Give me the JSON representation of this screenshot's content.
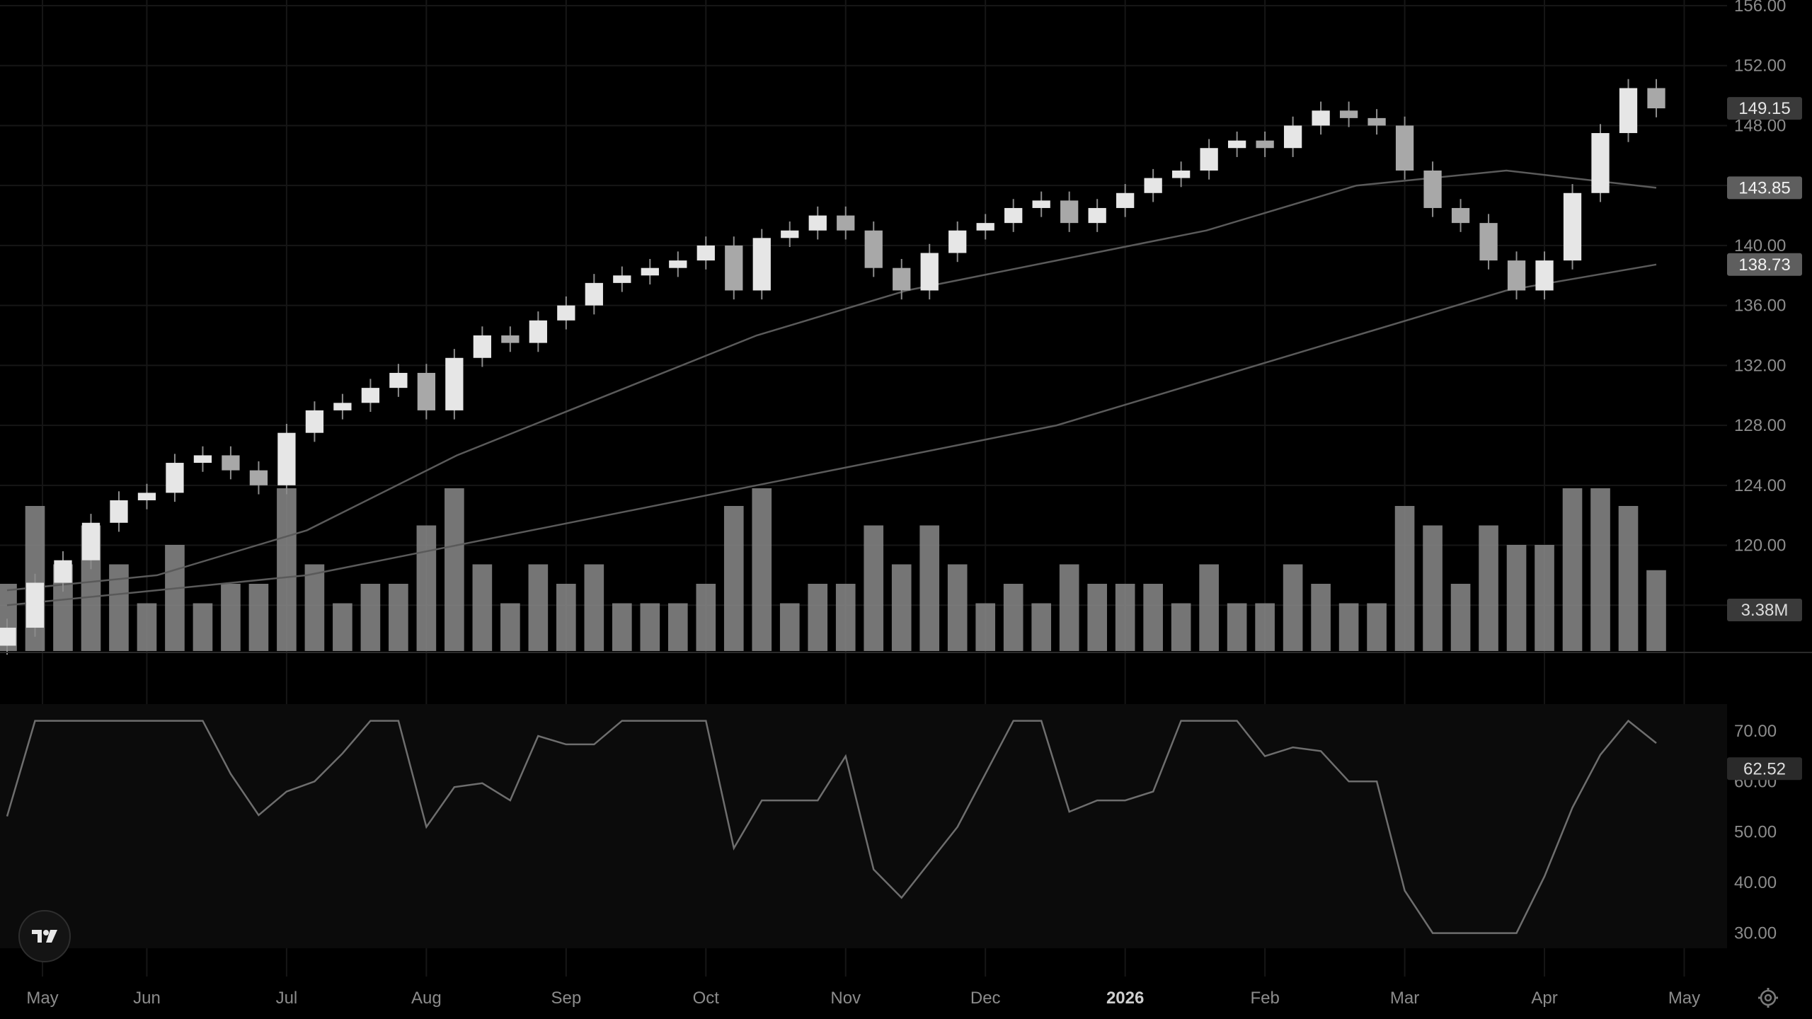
{
  "chart_data": [
    {
      "type": "candlestick",
      "title": "",
      "x_labels": [
        "May",
        "Jun",
        "Jul",
        "Aug",
        "Sep",
        "Oct",
        "Nov",
        "Dec",
        "2026",
        "Feb",
        "Mar",
        "Apr",
        "May"
      ],
      "price_ylim": [
        112,
        156
      ],
      "price_ticks": [
        "156.00",
        "152.00",
        "148.00",
        "144.00",
        "140.00",
        "136.00",
        "132.00",
        "128.00",
        "124.00",
        "120.00",
        "116.00"
      ],
      "last_price_label": "149.15",
      "ma_fast_label": "143.85",
      "ma_slow_label": "138.73",
      "volume_label": "3.38M",
      "close_series_monthly_approx": [
        {
          "month": "May",
          "close": [
            114.5,
            117.5,
            119.0,
            121.5,
            123.0
          ]
        },
        {
          "month": "Jun",
          "close": [
            123.5,
            125.5,
            126.0,
            125.0,
            124.0
          ]
        },
        {
          "month": "Jul",
          "close": [
            127.5,
            129.0,
            129.5,
            130.5,
            131.5
          ]
        },
        {
          "month": "Aug",
          "close": [
            129.0,
            132.5,
            134.0,
            133.5,
            135.0
          ]
        },
        {
          "month": "Sep",
          "close": [
            136.0,
            137.5,
            138.0,
            138.5,
            139.0
          ]
        },
        {
          "month": "Oct",
          "close": [
            140.0,
            137.0,
            140.5,
            141.0,
            142.0
          ]
        },
        {
          "month": "Nov",
          "close": [
            141.0,
            138.5,
            137.0,
            139.5,
            141.0
          ]
        },
        {
          "month": "Dec",
          "close": [
            141.5,
            142.5,
            143.0,
            141.5,
            142.5
          ]
        },
        {
          "month": "2026",
          "close": [
            143.5,
            144.5,
            145.0,
            146.5,
            147.0
          ]
        },
        {
          "month": "Feb",
          "close": [
            146.5,
            148.0,
            149.0,
            148.5,
            148.0
          ]
        },
        {
          "month": "Mar",
          "close": [
            145.0,
            142.5,
            141.5,
            139.0,
            137.0
          ]
        },
        {
          "month": "Apr",
          "close": [
            139.0,
            143.5,
            147.5,
            150.5,
            149.15
          ]
        }
      ],
      "ma_fast_approx": [
        117,
        118,
        121,
        126,
        130,
        134,
        137,
        139,
        141,
        144,
        145,
        143.85
      ],
      "ma_slow_approx": [
        116,
        117,
        118,
        120,
        122,
        124,
        126,
        128,
        131,
        134,
        137,
        138.73
      ]
    },
    {
      "type": "line",
      "title": "",
      "ylim": [
        27,
        76
      ],
      "ticks": [
        "70.00",
        "60.00",
        "50.00",
        "40.00",
        "30.00"
      ],
      "overbought": 70,
      "oversold": 30,
      "last_value_label": "62.52"
    }
  ],
  "colors": {
    "background": "#000000",
    "grid": "#161616",
    "candle_up": "#e6e6e6",
    "candle_down": "#a8a8a8",
    "wick": "#8c8c8c",
    "ma_line": "#5a5a5a",
    "volume": "#8a8a8a",
    "rsi_line": "#6e6e6e",
    "axis_text": "#8c8c8c"
  },
  "icons": {
    "logo": "tradingview-logo-icon",
    "settings": "gear-icon"
  }
}
